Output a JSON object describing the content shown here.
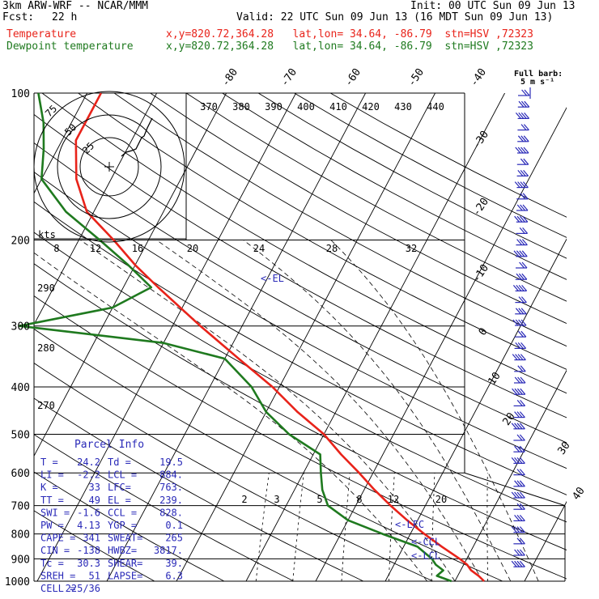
{
  "header": {
    "model": "3km ARW-WRF -- NCAR/MMM",
    "init": "Init: 00 UTC Sun 09 Jun 13",
    "fcst_label": "Fcst:",
    "fcst_value": "22 h",
    "valid": "Valid: 22 UTC Sun 09 Jun 13 (16 MDT Sun 09 Jun 13)",
    "temp_label": "Temperature",
    "dew_label": "Dewpoint temperature",
    "temp_loc": "x,y=820.72,364.28   lat,lon= 34.64, -86.79  stn=HSV ,72323",
    "dew_loc": "x,y=820.72,364.28   lat,lon= 34.64, -86.79  stn=HSV ,72323"
  },
  "colors": {
    "temperature": "#e8231a",
    "dewpoint": "#1f7a1f",
    "barbs": "#2a2ab8",
    "parcel_text": "#2a2ab8",
    "grid": "#000000"
  },
  "barb_legend": {
    "line1": "Full barb:",
    "line2": "5 m s⁻¹"
  },
  "hodograph": {
    "units": "kts",
    "rings": [
      "25",
      "50",
      "75"
    ]
  },
  "parcel_info": {
    "title": "Parcel Info",
    "rows": [
      [
        "T  =",
        "24.2",
        "Td =",
        "19.5"
      ],
      [
        "LI =",
        "-2.2",
        "LCL =",
        "884."
      ],
      [
        "K  =",
        "33",
        "LFC=",
        "763."
      ],
      [
        "TT =",
        "49",
        "EL =",
        "239."
      ],
      [
        "SWI =",
        "-1.6",
        "CCL =",
        "828."
      ],
      [
        "PW =",
        "4.13",
        "YGP =",
        "0.1"
      ],
      [
        "CAPE =",
        "341",
        "SWEAT=",
        "265"
      ],
      [
        "CIN =",
        "-138",
        "HWBZ=",
        "3817."
      ],
      [
        "Tc =",
        "30.3",
        "SHEAR=",
        "39."
      ],
      [
        "SREH =",
        "51",
        "LAPSE=",
        "6.3"
      ],
      [
        "CELL =",
        "225/36",
        "",
        ""
      ]
    ]
  },
  "chart_data": {
    "type": "line",
    "chart_kind": "skew-T log-p",
    "y_axis": "pressure (hPa)",
    "pressure_ticks": [
      "100",
      "200",
      "300",
      "400",
      "500",
      "600",
      "700",
      "800",
      "900",
      "1000"
    ],
    "isotherm_labels": [
      "-80",
      "-70",
      "-60",
      "-50",
      "-40",
      "-30",
      "-20",
      "-10",
      "0",
      "10",
      "20",
      "30",
      "40"
    ],
    "theta_labels": [
      "370",
      "380",
      "390",
      "400",
      "410",
      "420",
      "430",
      "440"
    ],
    "mixing_labels_top": [
      "8",
      "12",
      "16",
      "20",
      "24",
      "28",
      "32"
    ],
    "mixing_labels_low": [
      "2",
      "3",
      "5",
      "8",
      "12",
      "20"
    ],
    "theta_left_labels": [
      "290",
      "280",
      "270"
    ],
    "levels": {
      "EL": {
        "label": "<-EL",
        "p": 239
      },
      "LFC": {
        "label": "<-LFC",
        "p": 763
      },
      "CCL": {
        "label": "<-CCL",
        "p": 828
      },
      "LCL": {
        "label": "<-LCL",
        "p": 884
      }
    },
    "series": [
      {
        "name": "Temperature",
        "points": [
          [
            1000,
            24.2
          ],
          [
            975,
            23
          ],
          [
            950,
            21.5
          ],
          [
            925,
            20.5
          ],
          [
            900,
            19
          ],
          [
            850,
            15.5
          ],
          [
            800,
            12
          ],
          [
            750,
            8.5
          ],
          [
            700,
            5
          ],
          [
            650,
            1.5
          ],
          [
            600,
            -2
          ],
          [
            550,
            -6
          ],
          [
            500,
            -10
          ],
          [
            450,
            -15.5
          ],
          [
            400,
            -21
          ],
          [
            350,
            -28
          ],
          [
            300,
            -36
          ],
          [
            250,
            -45
          ],
          [
            225,
            -50
          ],
          [
            200,
            -55
          ],
          [
            175,
            -61
          ],
          [
            150,
            -65
          ],
          [
            125,
            -68
          ],
          [
            110,
            -68
          ],
          [
            100,
            -68
          ]
        ]
      },
      {
        "name": "Dewpoint temperature",
        "points": [
          [
            1000,
            19.5
          ],
          [
            975,
            17
          ],
          [
            950,
            17.5
          ],
          [
            925,
            16
          ],
          [
            900,
            15
          ],
          [
            850,
            12
          ],
          [
            800,
            6
          ],
          [
            750,
            0
          ],
          [
            700,
            -4
          ],
          [
            650,
            -6
          ],
          [
            600,
            -7.5
          ],
          [
            550,
            -9
          ],
          [
            500,
            -15
          ],
          [
            450,
            -20
          ],
          [
            400,
            -24
          ],
          [
            350,
            -30
          ],
          [
            325,
            -40
          ],
          [
            300,
            -62
          ],
          [
            275,
            -50
          ],
          [
            250,
            -46
          ],
          [
            225,
            -51
          ],
          [
            200,
            -57
          ],
          [
            175,
            -64
          ],
          [
            150,
            -70
          ],
          [
            130,
            -72
          ],
          [
            115,
            -74
          ],
          [
            100,
            -77
          ]
        ]
      }
    ]
  }
}
